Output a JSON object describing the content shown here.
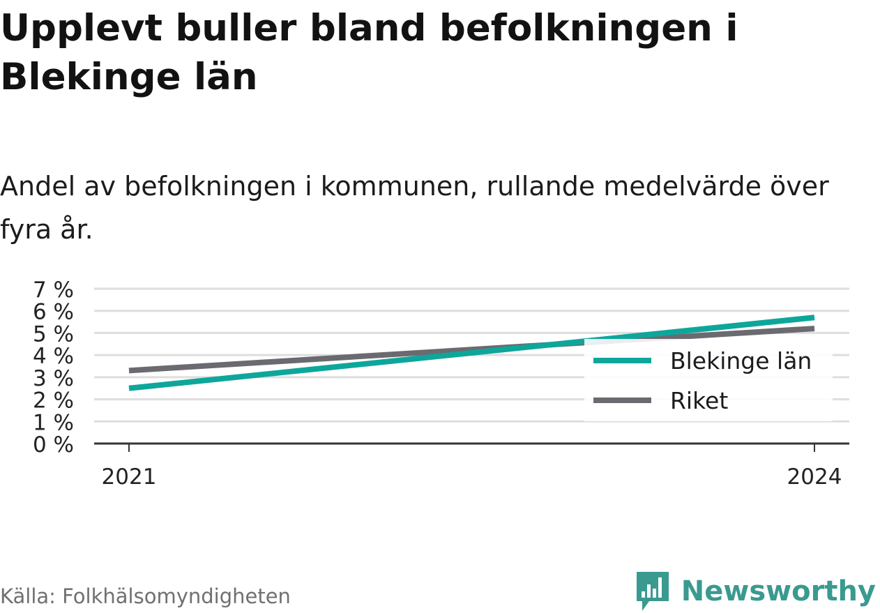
{
  "title": "Upplevt buller bland befolkningen i Blekinge län",
  "subtitle": "Andel av befolkningen i kommunen, rullande medelvärde över fyra år.",
  "source": "Källa: Folkhälsomyndigheten",
  "brand": {
    "name": "Newsworthy",
    "logo_icon": "bar-chart-speech-bubble-icon",
    "color": "#3a9a8f"
  },
  "chart_data": {
    "type": "line",
    "x": [
      "2021",
      "2024"
    ],
    "ylim": [
      0,
      7
    ],
    "yticks": [
      "0 %",
      "1 %",
      "2 %",
      "3 %",
      "4 %",
      "5 %",
      "6 %",
      "7 %"
    ],
    "grid": true,
    "legend_position": "right",
    "series": [
      {
        "name": "Blekinge län",
        "values": [
          2.5,
          5.7
        ],
        "color": "#0ea69b"
      },
      {
        "name": "Riket",
        "values": [
          3.3,
          5.2
        ],
        "color": "#6b6a70"
      }
    ]
  }
}
